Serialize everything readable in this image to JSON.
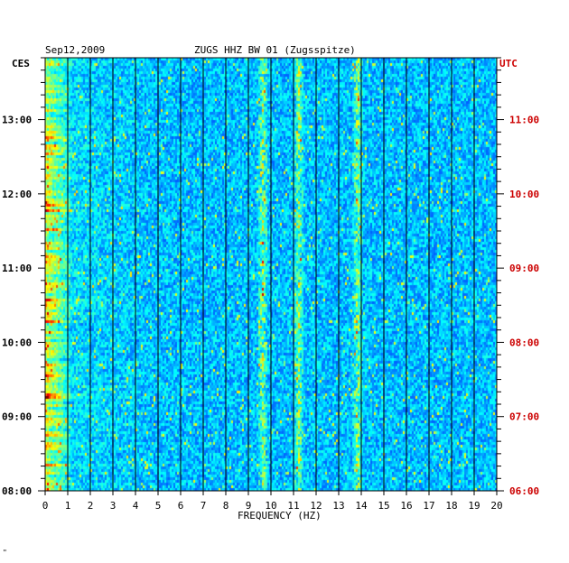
{
  "header": {
    "date": "Sep12,2009",
    "station": "ZUGS HHZ BW 01 (Zugsspitze)",
    "left_zone": "CES",
    "right_zone": "UTC"
  },
  "footer_mark": "\"",
  "colors": {
    "left_axis": "#000000",
    "right_axis": "#cc0000",
    "background_spectrum": "#0000b4",
    "gridlines": "#000000"
  },
  "chart_data": {
    "type": "heatmap",
    "title": "ZUGS HHZ BW 01 (Zugsspitze)",
    "xlabel": "FREQUENCY (HZ)",
    "xlim": [
      0,
      20
    ],
    "x_ticks": [
      "0",
      "1",
      "2",
      "3",
      "4",
      "5",
      "6",
      "7",
      "8",
      "9",
      "10",
      "11",
      "12",
      "13",
      "14",
      "15",
      "16",
      "17",
      "18",
      "19",
      "20"
    ],
    "left_time_zone": "CES",
    "left_time_ticks": [
      "13:00",
      "12:00",
      "11:00",
      "10:00",
      "09:00",
      "08:00"
    ],
    "right_time_zone": "UTC",
    "right_time_ticks": [
      "11:00",
      "10:00",
      "09:00",
      "08:00",
      "07:00",
      "06:00"
    ],
    "time_range_local": [
      "08:00",
      "13:50"
    ],
    "colormap": "jet",
    "persistent_peaks_hz": [
      9.6,
      11.2,
      13.8
    ],
    "grid": true
  }
}
